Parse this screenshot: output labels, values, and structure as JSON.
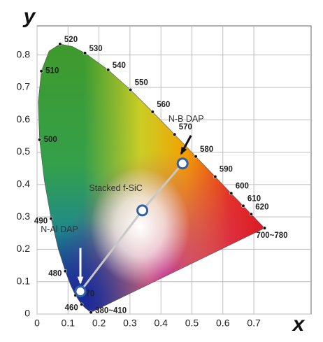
{
  "chart_data": {
    "type": "scatter",
    "xlabel": "x",
    "ylabel": "y",
    "xlim": [
      0,
      0.885
    ],
    "ylim": [
      0,
      0.89
    ],
    "xticks": [
      0,
      0.1,
      0.2,
      0.3,
      0.4,
      0.5,
      0.6,
      0.7
    ],
    "yticks": [
      0,
      0.1,
      0.2,
      0.3,
      0.4,
      0.5,
      0.6,
      0.7,
      0.8
    ],
    "grid": true,
    "locus": {
      "x": [
        0.1741,
        0.1566,
        0.144,
        0.1241,
        0.1096,
        0.0913,
        0.0687,
        0.0454,
        0.0235,
        0.0082,
        0.0039,
        0.0139,
        0.0389,
        0.0743,
        0.1142,
        0.1547,
        0.2296,
        0.3016,
        0.3731,
        0.4441,
        0.5125,
        0.5752,
        0.627,
        0.6658,
        0.6915,
        0.7347
      ],
      "y": [
        0.005,
        0.0177,
        0.0297,
        0.0578,
        0.0868,
        0.1327,
        0.2007,
        0.295,
        0.4127,
        0.5384,
        0.6548,
        0.7502,
        0.812,
        0.8338,
        0.8262,
        0.8059,
        0.7543,
        0.6923,
        0.6245,
        0.5547,
        0.4866,
        0.4242,
        0.3725,
        0.334,
        0.3083,
        0.2653
      ],
      "labels": [
        "380~410",
        null,
        "460",
        "470",
        null,
        "480",
        null,
        "490",
        null,
        "500",
        null,
        "510",
        null,
        "520",
        null,
        "530",
        "540",
        "550",
        "560",
        "570",
        "580",
        "590",
        "600",
        "610",
        "620",
        "700~780"
      ]
    },
    "series": [
      {
        "color": "#2e62a8",
        "line_color": "#c8c8c8",
        "x": [
          0.14,
          0.34,
          0.47
        ],
        "values": [
          0.07,
          0.32,
          0.465
        ],
        "labels": [
          "N-Al DAP",
          "Stacked f-SiC",
          "N-B DAP"
        ]
      }
    ]
  }
}
